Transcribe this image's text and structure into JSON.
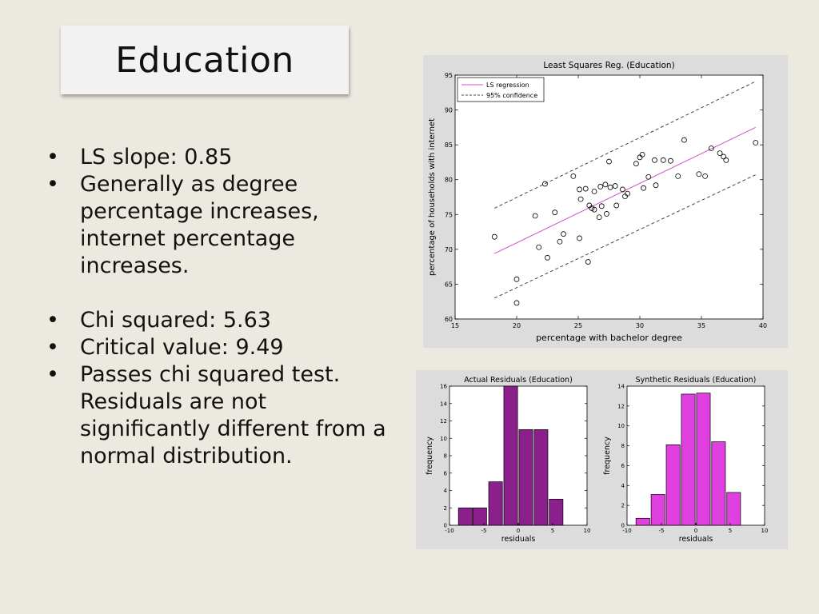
{
  "slide": {
    "title": "Education",
    "bullets_group1": [
      "LS slope: 0.85",
      "Generally as degree percentage increases, internet percentage increases."
    ],
    "bullets_group2": [
      "Chi squared: 5.63",
      "Critical value: 9.49",
      "Passes chi squared test. Residuals are not significantly different from a normal distribution."
    ]
  },
  "chart_data": [
    {
      "type": "scatter",
      "title": "Least Squares Reg. (Education)",
      "xlabel": "percentage with bachelor degree",
      "ylabel": "percentage of households with internet",
      "xlim": [
        15,
        40
      ],
      "ylim": [
        60,
        95
      ],
      "xticks": [
        15,
        20,
        25,
        30,
        35,
        40
      ],
      "yticks": [
        60,
        65,
        70,
        75,
        80,
        85,
        90,
        95
      ],
      "legend": {
        "position": "top-left",
        "entries": [
          "LS regression",
          "95% confidence"
        ]
      },
      "points": [
        [
          18.2,
          71.8
        ],
        [
          20.0,
          65.7
        ],
        [
          20.0,
          62.3
        ],
        [
          21.5,
          74.8
        ],
        [
          21.8,
          70.3
        ],
        [
          22.3,
          79.4
        ],
        [
          22.5,
          68.8
        ],
        [
          23.1,
          75.3
        ],
        [
          23.5,
          71.1
        ],
        [
          23.8,
          72.2
        ],
        [
          24.6,
          80.5
        ],
        [
          25.1,
          78.6
        ],
        [
          25.2,
          77.2
        ],
        [
          25.1,
          71.6
        ],
        [
          25.6,
          78.7
        ],
        [
          25.8,
          68.2
        ],
        [
          25.9,
          76.3
        ],
        [
          26.1,
          75.9
        ],
        [
          26.3,
          75.7
        ],
        [
          26.3,
          78.3
        ],
        [
          26.7,
          74.6
        ],
        [
          26.8,
          79.0
        ],
        [
          26.9,
          76.2
        ],
        [
          27.2,
          79.3
        ],
        [
          27.3,
          75.1
        ],
        [
          27.5,
          82.6
        ],
        [
          27.6,
          78.9
        ],
        [
          28.0,
          79.1
        ],
        [
          28.1,
          76.3
        ],
        [
          28.6,
          78.6
        ],
        [
          28.8,
          77.6
        ],
        [
          29.0,
          78.0
        ],
        [
          29.7,
          82.3
        ],
        [
          30.0,
          83.2
        ],
        [
          30.2,
          83.6
        ],
        [
          30.3,
          78.8
        ],
        [
          30.7,
          80.4
        ],
        [
          31.2,
          82.8
        ],
        [
          31.3,
          79.2
        ],
        [
          31.9,
          82.8
        ],
        [
          32.5,
          82.7
        ],
        [
          33.1,
          80.5
        ],
        [
          33.6,
          85.7
        ],
        [
          34.8,
          80.8
        ],
        [
          35.3,
          80.5
        ],
        [
          35.8,
          84.5
        ],
        [
          36.5,
          83.8
        ],
        [
          36.8,
          83.3
        ],
        [
          37.0,
          82.8
        ],
        [
          39.4,
          85.3
        ]
      ],
      "regression": {
        "x": [
          18.2,
          39.4
        ],
        "y": [
          69.4,
          87.5
        ]
      },
      "confidence_upper": {
        "x": [
          18.2,
          39.4
        ],
        "y": [
          75.9,
          94.1
        ]
      },
      "confidence_lower": {
        "x": [
          18.2,
          39.4
        ],
        "y": [
          63.0,
          80.7
        ]
      },
      "colors": {
        "regression": "#CC55CC",
        "confidence": "#444444"
      }
    },
    {
      "type": "bar",
      "title": "Actual Residuals (Education)",
      "xlabel": "residuals",
      "ylabel": "frequency",
      "xlim": [
        -10,
        10
      ],
      "ylim": [
        0,
        16
      ],
      "xticks": [
        -10,
        -5,
        0,
        5,
        10
      ],
      "yticks": [
        0,
        2,
        4,
        6,
        8,
        10,
        12,
        14,
        16
      ],
      "bin_width": 2,
      "bin_centers": [
        -7.7,
        -5.6,
        -3.3,
        -1.1,
        1.1,
        3.3,
        5.5
      ],
      "values": [
        2,
        2,
        5,
        16,
        11,
        11,
        3
      ],
      "colors": {
        "bar": "#8B1F8B"
      }
    },
    {
      "type": "bar",
      "title": "Synthetic Residuals (Education)",
      "xlabel": "residuals",
      "ylabel": "frequency",
      "xlim": [
        -10,
        10
      ],
      "ylim": [
        0,
        14
      ],
      "xticks": [
        -10,
        -5,
        0,
        5,
        10
      ],
      "yticks": [
        0,
        2,
        4,
        6,
        8,
        10,
        12,
        14
      ],
      "bin_width": 2,
      "bin_centers": [
        -7.7,
        -5.5,
        -3.3,
        -1.1,
        1.1,
        3.3,
        5.5
      ],
      "values": [
        0.7,
        3.1,
        8.1,
        13.2,
        13.3,
        8.4,
        3.3
      ],
      "colors": {
        "bar": "#E040E0"
      }
    }
  ]
}
